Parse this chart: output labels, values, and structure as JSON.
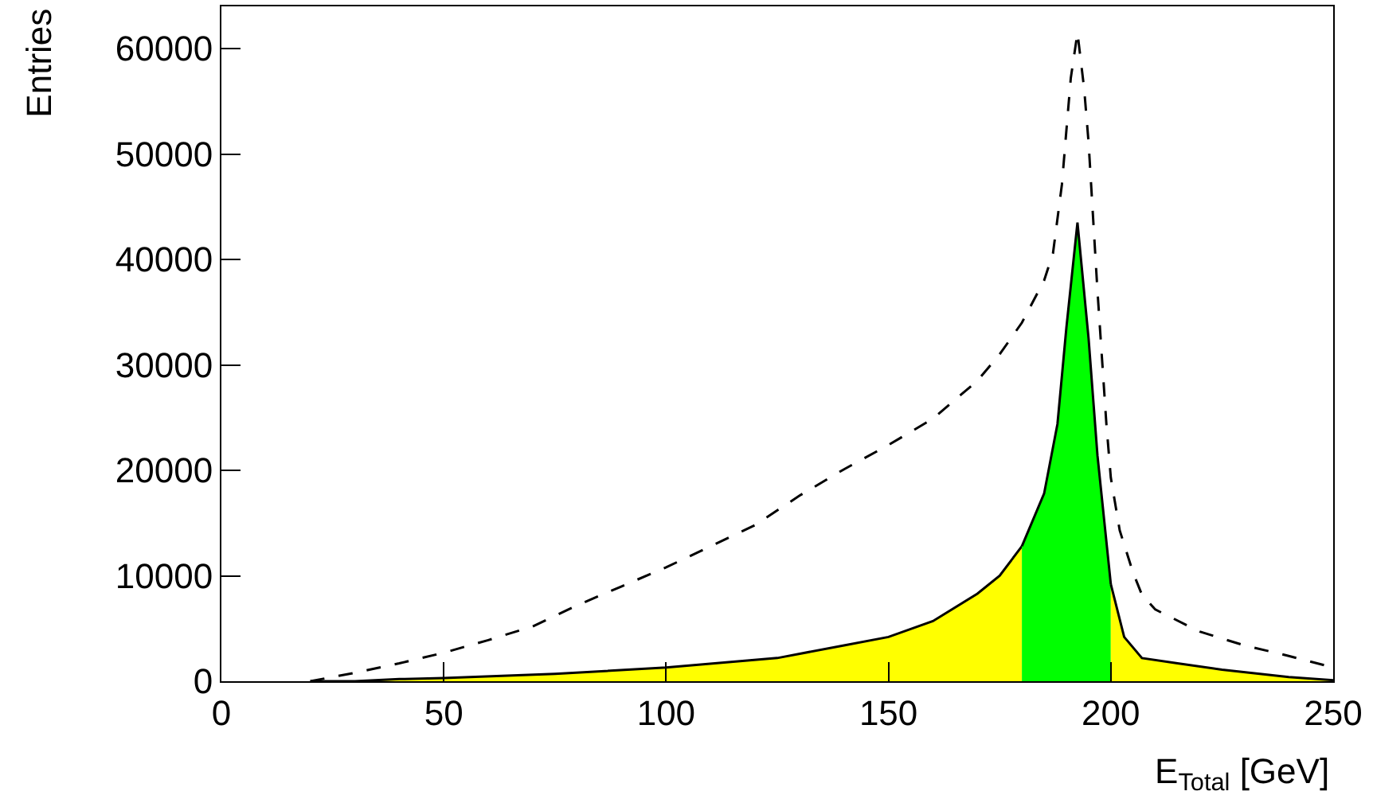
{
  "chart_data": {
    "type": "area",
    "xlabel": "E$_{Total}$ [GeV]",
    "ylabel": "Entries",
    "xlim": [
      0,
      250
    ],
    "xticks": [
      0,
      50,
      100,
      150,
      200,
      250
    ],
    "ylim": [
      0,
      64000
    ],
    "yticks": [
      0,
      10000,
      20000,
      30000,
      40000,
      50000,
      60000
    ],
    "series": [
      {
        "color": "#ffff00",
        "x": [
          20,
          30,
          40,
          50,
          75,
          100,
          125,
          140,
          150,
          160,
          170,
          175,
          180
        ],
        "values": [
          0,
          0,
          200,
          300,
          700,
          1300,
          2200,
          3400,
          4200,
          5700,
          8300,
          10000,
          12800
        ]
      },
      {
        "color": "#00ff00",
        "x": [
          180,
          185,
          188,
          190,
          192.5,
          195,
          197,
          200
        ],
        "values": [
          12800,
          17800,
          24400,
          33500,
          43500,
          32500,
          21400,
          9200
        ]
      },
      {
        "color": "#ffff00",
        "x": [
          200,
          203,
          207,
          215,
          225,
          240,
          250
        ],
        "values": [
          9200,
          4200,
          2200,
          1700,
          1100,
          400,
          100
        ]
      },
      {
        "type": "line",
        "color": "#000000",
        "line_style": "dashed",
        "x": [
          20,
          30,
          40,
          50,
          60,
          70,
          80,
          90,
          100,
          110,
          120,
          130,
          140,
          150,
          160,
          170,
          175,
          180,
          185,
          187,
          189,
          190,
          191,
          192.5,
          194,
          195,
          197,
          199,
          200,
          202,
          205,
          207,
          210,
          220,
          230,
          240,
          250
        ],
        "values": [
          0,
          800,
          1700,
          2700,
          3900,
          5200,
          7200,
          9000,
          10800,
          12800,
          14800,
          17600,
          20100,
          22400,
          24900,
          28500,
          31000,
          34000,
          38000,
          40600,
          47100,
          52200,
          57200,
          61500,
          56200,
          51100,
          37000,
          24400,
          19300,
          14300,
          10300,
          8200,
          6800,
          4700,
          3400,
          2400,
          1300
        ]
      }
    ]
  }
}
